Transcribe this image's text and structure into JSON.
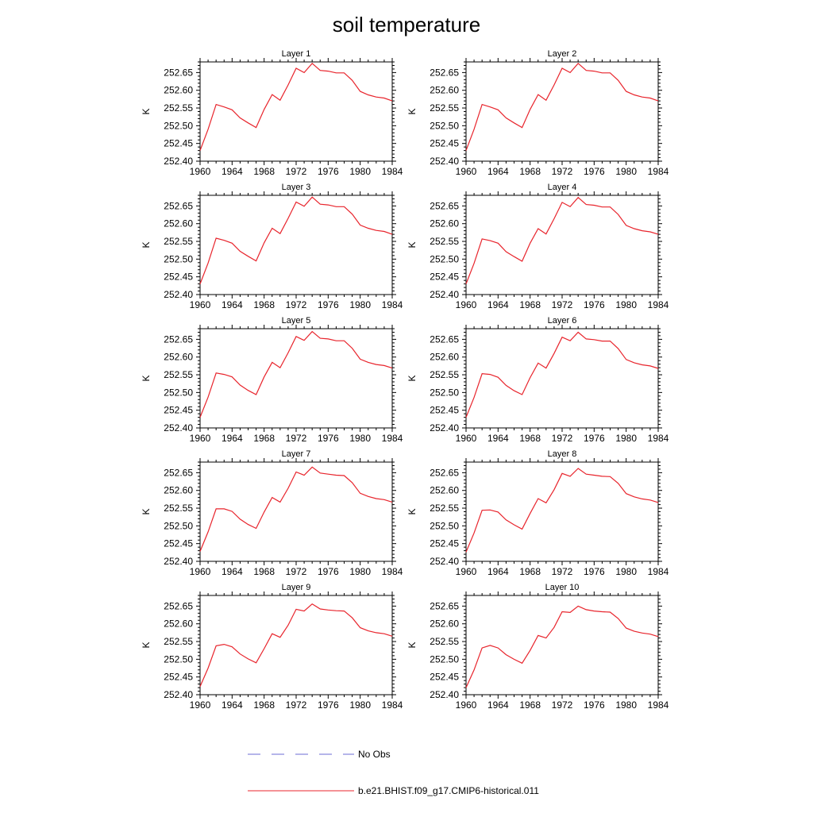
{
  "figure": {
    "title": "soil temperature"
  },
  "legend": {
    "items": [
      {
        "label": "No Obs",
        "color": "#6b6bd6",
        "style": "dashed"
      },
      {
        "label": "b.e21.BHIST.f09_g17.CMIP6-historical.011",
        "color": "#e8242c",
        "style": "solid"
      }
    ]
  },
  "chart_data": [
    {
      "type": "line",
      "title": "Layer 1",
      "ylabel": "K",
      "xlim": [
        1960,
        1984
      ],
      "ylim": [
        252.4,
        252.68
      ],
      "xticks": [
        "1960",
        "1964",
        "1968",
        "1972",
        "1976",
        "1980",
        "1984"
      ],
      "yticks": [
        "252.40",
        "252.45",
        "252.50",
        "252.55",
        "252.60",
        "252.65"
      ],
      "series": [
        {
          "color": "#e8242c",
          "x": [
            1960,
            1961,
            1962,
            1963,
            1964,
            1965,
            1966,
            1967,
            1968,
            1969,
            1970,
            1971,
            1972,
            1973,
            1974,
            1975,
            1976,
            1977,
            1978,
            1979,
            1980,
            1981,
            1982,
            1983,
            1984
          ],
          "y": [
            252.43,
            252.49,
            252.56,
            252.553,
            252.545,
            252.522,
            252.508,
            252.495,
            252.546,
            252.588,
            252.572,
            252.615,
            252.662,
            252.65,
            252.676,
            252.656,
            252.654,
            252.649,
            252.649,
            252.628,
            252.597,
            252.587,
            252.581,
            252.578,
            252.57
          ]
        }
      ]
    },
    {
      "type": "line",
      "title": "Layer 2",
      "ylabel": "K",
      "xlim": [
        1960,
        1984
      ],
      "ylim": [
        252.4,
        252.68
      ],
      "xticks": [
        "1960",
        "1964",
        "1968",
        "1972",
        "1976",
        "1980",
        "1984"
      ],
      "yticks": [
        "252.40",
        "252.45",
        "252.50",
        "252.55",
        "252.60",
        "252.65"
      ],
      "series": [
        {
          "color": "#e8242c",
          "x": [
            1960,
            1961,
            1962,
            1963,
            1964,
            1965,
            1966,
            1967,
            1968,
            1969,
            1970,
            1971,
            1972,
            1973,
            1974,
            1975,
            1976,
            1977,
            1978,
            1979,
            1980,
            1981,
            1982,
            1983,
            1984
          ],
          "y": [
            252.43,
            252.49,
            252.56,
            252.553,
            252.545,
            252.522,
            252.508,
            252.495,
            252.546,
            252.588,
            252.572,
            252.615,
            252.662,
            252.65,
            252.676,
            252.656,
            252.654,
            252.649,
            252.649,
            252.628,
            252.597,
            252.587,
            252.581,
            252.578,
            252.57
          ]
        }
      ]
    },
    {
      "type": "line",
      "title": "Layer 3",
      "ylabel": "K",
      "xlim": [
        1960,
        1984
      ],
      "ylim": [
        252.4,
        252.68
      ],
      "xticks": [
        "1960",
        "1964",
        "1968",
        "1972",
        "1976",
        "1980",
        "1984"
      ],
      "yticks": [
        "252.40",
        "252.45",
        "252.50",
        "252.55",
        "252.60",
        "252.65"
      ],
      "series": [
        {
          "color": "#e8242c",
          "x": [
            1960,
            1961,
            1962,
            1963,
            1964,
            1965,
            1966,
            1967,
            1968,
            1969,
            1970,
            1971,
            1972,
            1973,
            1974,
            1975,
            1976,
            1977,
            1978,
            1979,
            1980,
            1981,
            1982,
            1983,
            1984
          ],
          "y": [
            252.43,
            252.489,
            252.559,
            252.553,
            252.545,
            252.522,
            252.508,
            252.495,
            252.546,
            252.587,
            252.572,
            252.615,
            252.661,
            252.649,
            252.675,
            252.655,
            252.653,
            252.648,
            252.648,
            252.627,
            252.596,
            252.587,
            252.581,
            252.578,
            252.57
          ]
        }
      ]
    },
    {
      "type": "line",
      "title": "Layer 4",
      "ylabel": "K",
      "xlim": [
        1960,
        1984
      ],
      "ylim": [
        252.4,
        252.68
      ],
      "xticks": [
        "1960",
        "1964",
        "1968",
        "1972",
        "1976",
        "1980",
        "1984"
      ],
      "yticks": [
        "252.40",
        "252.45",
        "252.50",
        "252.55",
        "252.60",
        "252.65"
      ],
      "series": [
        {
          "color": "#e8242c",
          "x": [
            1960,
            1961,
            1962,
            1963,
            1964,
            1965,
            1966,
            1967,
            1968,
            1969,
            1970,
            1971,
            1972,
            1973,
            1974,
            1975,
            1976,
            1977,
            1978,
            1979,
            1980,
            1981,
            1982,
            1983,
            1984
          ],
          "y": [
            252.43,
            252.488,
            252.557,
            252.552,
            252.545,
            252.521,
            252.507,
            252.494,
            252.545,
            252.586,
            252.571,
            252.614,
            252.66,
            252.648,
            252.674,
            252.654,
            252.652,
            252.647,
            252.647,
            252.626,
            252.595,
            252.586,
            252.58,
            252.577,
            252.57
          ]
        }
      ]
    },
    {
      "type": "line",
      "title": "Layer 5",
      "ylabel": "K",
      "xlim": [
        1960,
        1984
      ],
      "ylim": [
        252.4,
        252.68
      ],
      "xticks": [
        "1960",
        "1964",
        "1968",
        "1972",
        "1976",
        "1980",
        "1984"
      ],
      "yticks": [
        "252.40",
        "252.45",
        "252.50",
        "252.55",
        "252.60",
        "252.65"
      ],
      "series": [
        {
          "color": "#e8242c",
          "x": [
            1960,
            1961,
            1962,
            1963,
            1964,
            1965,
            1966,
            1967,
            1968,
            1969,
            1970,
            1971,
            1972,
            1973,
            1974,
            1975,
            1976,
            1977,
            1978,
            1979,
            1980,
            1981,
            1982,
            1983,
            1984
          ],
          "y": [
            252.43,
            252.487,
            252.555,
            252.551,
            252.544,
            252.521,
            252.506,
            252.494,
            252.544,
            252.585,
            252.57,
            252.612,
            252.658,
            252.647,
            252.672,
            252.653,
            252.651,
            252.646,
            252.646,
            252.625,
            252.594,
            252.585,
            252.579,
            252.576,
            252.569
          ]
        }
      ]
    },
    {
      "type": "line",
      "title": "Layer 6",
      "ylabel": "K",
      "xlim": [
        1960,
        1984
      ],
      "ylim": [
        252.4,
        252.68
      ],
      "xticks": [
        "1960",
        "1964",
        "1968",
        "1972",
        "1976",
        "1980",
        "1984"
      ],
      "yticks": [
        "252.40",
        "252.45",
        "252.50",
        "252.55",
        "252.60",
        "252.65"
      ],
      "series": [
        {
          "color": "#e8242c",
          "x": [
            1960,
            1961,
            1962,
            1963,
            1964,
            1965,
            1966,
            1967,
            1968,
            1969,
            1970,
            1971,
            1972,
            1973,
            1974,
            1975,
            1976,
            1977,
            1978,
            1979,
            1980,
            1981,
            1982,
            1983,
            1984
          ],
          "y": [
            252.43,
            252.486,
            252.553,
            252.551,
            252.543,
            252.52,
            252.505,
            252.494,
            252.542,
            252.583,
            252.569,
            252.61,
            252.656,
            252.646,
            252.67,
            252.651,
            252.649,
            252.645,
            252.645,
            252.624,
            252.593,
            252.584,
            252.578,
            252.575,
            252.568
          ]
        }
      ]
    },
    {
      "type": "line",
      "title": "Layer 7",
      "ylabel": "K",
      "xlim": [
        1960,
        1984
      ],
      "ylim": [
        252.4,
        252.68
      ],
      "xticks": [
        "1960",
        "1964",
        "1968",
        "1972",
        "1976",
        "1980",
        "1984"
      ],
      "yticks": [
        "252.40",
        "252.45",
        "252.50",
        "252.55",
        "252.60",
        "252.65"
      ],
      "series": [
        {
          "color": "#e8242c",
          "x": [
            1960,
            1961,
            1962,
            1963,
            1964,
            1965,
            1966,
            1967,
            1968,
            1969,
            1970,
            1971,
            1972,
            1973,
            1974,
            1975,
            1976,
            1977,
            1978,
            1979,
            1980,
            1981,
            1982,
            1983,
            1984
          ],
          "y": [
            252.428,
            252.483,
            252.548,
            252.548,
            252.541,
            252.519,
            252.504,
            252.493,
            252.539,
            252.58,
            252.567,
            252.606,
            252.652,
            252.643,
            252.666,
            252.649,
            252.646,
            252.643,
            252.642,
            252.622,
            252.592,
            252.583,
            252.577,
            252.574,
            252.567
          ]
        }
      ]
    },
    {
      "type": "line",
      "title": "Layer 8",
      "ylabel": "K",
      "xlim": [
        1960,
        1984
      ],
      "ylim": [
        252.4,
        252.68
      ],
      "xticks": [
        "1960",
        "1964",
        "1968",
        "1972",
        "1976",
        "1980",
        "1984"
      ],
      "yticks": [
        "252.40",
        "252.45",
        "252.50",
        "252.55",
        "252.60",
        "252.65"
      ],
      "series": [
        {
          "color": "#e8242c",
          "x": [
            1960,
            1961,
            1962,
            1963,
            1964,
            1965,
            1966,
            1967,
            1968,
            1969,
            1970,
            1971,
            1972,
            1973,
            1974,
            1975,
            1976,
            1977,
            1978,
            1979,
            1980,
            1981,
            1982,
            1983,
            1984
          ],
          "y": [
            252.426,
            252.48,
            252.544,
            252.545,
            252.539,
            252.517,
            252.503,
            252.491,
            252.535,
            252.577,
            252.565,
            252.602,
            252.648,
            252.64,
            252.662,
            252.646,
            252.643,
            252.64,
            252.639,
            252.62,
            252.591,
            252.582,
            252.576,
            252.573,
            252.566
          ]
        }
      ]
    },
    {
      "type": "line",
      "title": "Layer 9",
      "ylabel": "K",
      "xlim": [
        1960,
        1984
      ],
      "ylim": [
        252.4,
        252.68
      ],
      "xticks": [
        "1960",
        "1964",
        "1968",
        "1972",
        "1976",
        "1980",
        "1984"
      ],
      "yticks": [
        "252.40",
        "252.45",
        "252.50",
        "252.55",
        "252.60",
        "252.65"
      ],
      "series": [
        {
          "color": "#e8242c",
          "x": [
            1960,
            1961,
            1962,
            1963,
            1964,
            1965,
            1966,
            1967,
            1968,
            1969,
            1970,
            1971,
            1972,
            1973,
            1974,
            1975,
            1976,
            1977,
            1978,
            1979,
            1980,
            1981,
            1982,
            1983,
            1984
          ],
          "y": [
            252.423,
            252.475,
            252.538,
            252.542,
            252.535,
            252.515,
            252.501,
            252.49,
            252.53,
            252.572,
            252.562,
            252.596,
            252.641,
            252.636,
            252.656,
            252.642,
            252.639,
            252.637,
            252.636,
            252.617,
            252.589,
            252.58,
            252.575,
            252.572,
            252.565
          ]
        }
      ]
    },
    {
      "type": "line",
      "title": "Layer 10",
      "ylabel": "K",
      "xlim": [
        1960,
        1984
      ],
      "ylim": [
        252.4,
        252.68
      ],
      "xticks": [
        "1960",
        "1964",
        "1968",
        "1972",
        "1976",
        "1980",
        "1984"
      ],
      "yticks": [
        "252.40",
        "252.45",
        "252.50",
        "252.55",
        "252.60",
        "252.65"
      ],
      "series": [
        {
          "color": "#e8242c",
          "x": [
            1960,
            1961,
            1962,
            1963,
            1964,
            1965,
            1966,
            1967,
            1968,
            1969,
            1970,
            1971,
            1972,
            1973,
            1974,
            1975,
            1976,
            1977,
            1978,
            1979,
            1980,
            1981,
            1982,
            1983,
            1984
          ],
          "y": [
            252.42,
            252.47,
            252.532,
            252.539,
            252.532,
            252.513,
            252.5,
            252.489,
            252.525,
            252.567,
            252.56,
            252.59,
            252.634,
            252.632,
            252.65,
            252.64,
            252.636,
            252.634,
            252.633,
            252.615,
            252.588,
            252.579,
            252.574,
            252.571,
            252.564
          ]
        }
      ]
    }
  ]
}
